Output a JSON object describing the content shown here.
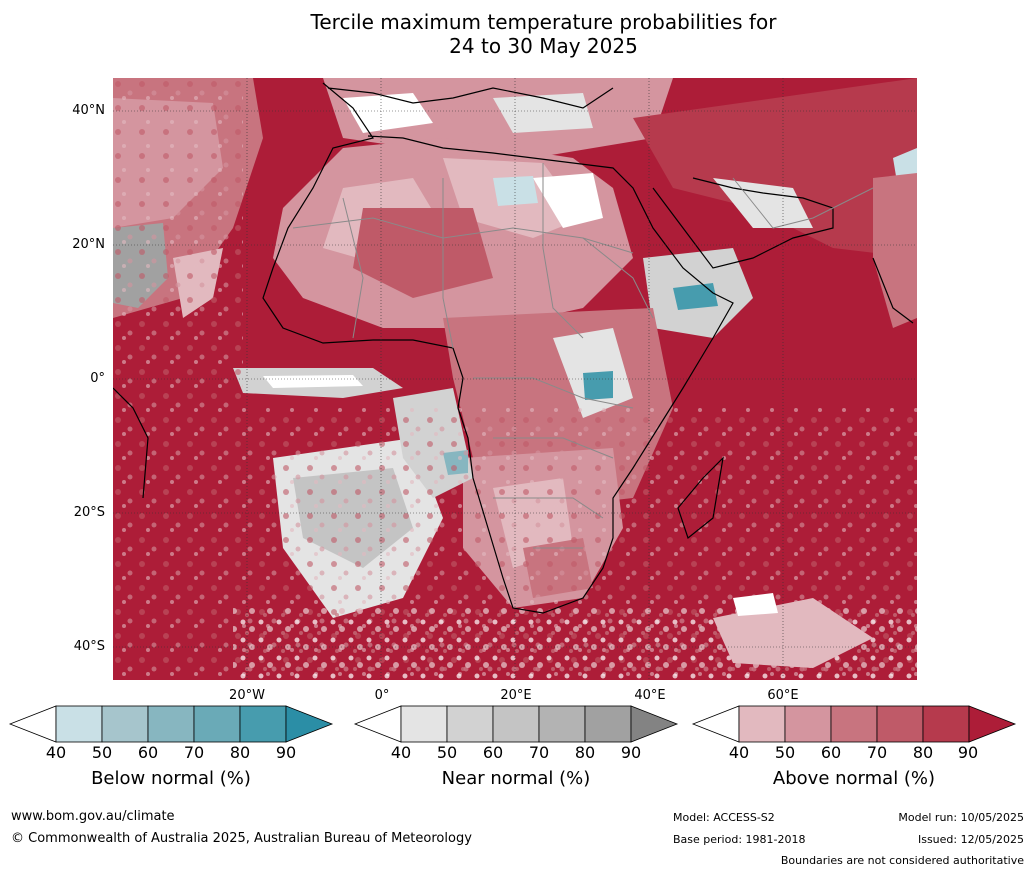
{
  "title_line1": "Tercile maximum temperature probabilities for",
  "title_line2": "24 to 30 May 2025",
  "map": {
    "lat_labels": [
      "40°N",
      "20°N",
      "0°",
      "20°S",
      "40°S"
    ],
    "lon_labels": [
      "20°W",
      "0°",
      "20°E",
      "40°E",
      "60°E"
    ]
  },
  "legend": {
    "ticks": [
      "40",
      "50",
      "60",
      "70",
      "80",
      "90"
    ],
    "below": {
      "title": "Below normal (%)",
      "colors": [
        "#ffffff",
        "#c9e0e6",
        "#a6c5cc",
        "#87b6c0",
        "#6aaab7",
        "#479cae",
        "#2b8ea6"
      ]
    },
    "near": {
      "title": "Near normal (%)",
      "colors": [
        "#ffffff",
        "#e4e4e4",
        "#d2d2d2",
        "#c4c4c4",
        "#b3b3b3",
        "#a1a1a1",
        "#838383"
      ]
    },
    "above": {
      "title": "Above normal (%)",
      "colors": [
        "#ffffff",
        "#e2b9bf",
        "#d4959f",
        "#c8747f",
        "#bf5a68",
        "#b63a4d",
        "#ad1d38"
      ]
    }
  },
  "footer": {
    "website": "www.bom.gov.au/climate",
    "copyright": "© Commonwealth of Australia 2025, Australian Bureau of Meteorology",
    "model": "Model: ACCESS-S2",
    "base_period": "Base period: 1981-2018",
    "model_run": "Model run: 10/05/2025",
    "issued": "Issued: 12/05/2025",
    "disclaimer": "Boundaries are not considered authoritative"
  }
}
